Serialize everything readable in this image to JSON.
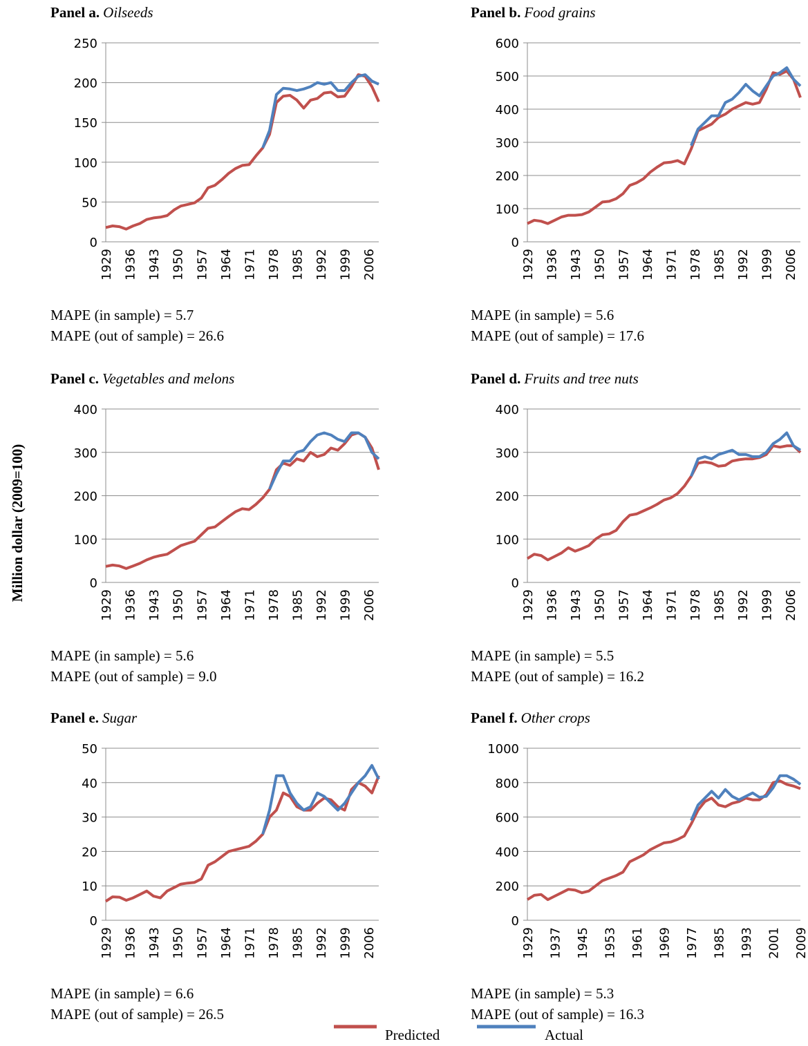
{
  "y_label": "Million dollar (2009=100)",
  "legend": [
    {
      "name": "Predicted",
      "color": "#c0504d"
    },
    {
      "name": "Actual",
      "color": "#4f81bd"
    }
  ],
  "chart_data": [
    {
      "type": "line",
      "title": "Panel a.",
      "subtitle": "Oilseeds",
      "notes": [
        "MAPE (in sample) = 5.7",
        "MAPE (out of sample) = 26.6"
      ],
      "x": [
        1929,
        1931,
        1933,
        1935,
        1937,
        1939,
        1941,
        1943,
        1945,
        1947,
        1949,
        1951,
        1953,
        1955,
        1957,
        1959,
        1961,
        1963,
        1965,
        1967,
        1969,
        1971,
        1973,
        1975,
        1977,
        1979,
        1981,
        1983,
        1985,
        1987,
        1989,
        1991,
        1993,
        1995,
        1997,
        1999,
        2001,
        2003,
        2005,
        2007,
        2009
      ],
      "xlim": [
        1929,
        2009
      ],
      "xticks": [
        1929,
        1936,
        1943,
        1950,
        1957,
        1964,
        1971,
        1978,
        1985,
        1992,
        1999,
        2006
      ],
      "ylim": [
        0,
        250
      ],
      "yticks": [
        0,
        50,
        100,
        150,
        200,
        250
      ],
      "grid": true,
      "series": [
        {
          "color": "#c0504d",
          "values": [
            18,
            20,
            19,
            16,
            20,
            23,
            28,
            30,
            31,
            33,
            40,
            45,
            47,
            49,
            55,
            68,
            71,
            78,
            86,
            92,
            96,
            97,
            108,
            118,
            135,
            175,
            183,
            184,
            178,
            168,
            178,
            180,
            187,
            188,
            182,
            183,
            195,
            210,
            208,
            195,
            176
          ]
        },
        {
          "color": "#4f81bd",
          "values": [
            null,
            null,
            null,
            null,
            null,
            null,
            null,
            null,
            null,
            null,
            null,
            null,
            null,
            null,
            null,
            null,
            null,
            null,
            null,
            null,
            null,
            null,
            null,
            118,
            140,
            185,
            193,
            192,
            190,
            192,
            195,
            200,
            198,
            200,
            190,
            190,
            200,
            208,
            210,
            202,
            198
          ]
        }
      ]
    },
    {
      "type": "line",
      "title": "Panel b.",
      "subtitle": "Food grains",
      "notes": [
        "MAPE (in sample) = 5.6",
        "MAPE (out of sample) = 17.6"
      ],
      "x": [
        1929,
        1931,
        1933,
        1935,
        1937,
        1939,
        1941,
        1943,
        1945,
        1947,
        1949,
        1951,
        1953,
        1955,
        1957,
        1959,
        1961,
        1963,
        1965,
        1967,
        1969,
        1971,
        1973,
        1975,
        1977,
        1979,
        1981,
        1983,
        1985,
        1987,
        1989,
        1991,
        1993,
        1995,
        1997,
        1999,
        2001,
        2003,
        2005,
        2007,
        2009
      ],
      "xlim": [
        1929,
        2009
      ],
      "xticks": [
        1929,
        1936,
        1943,
        1950,
        1957,
        1964,
        1971,
        1978,
        1985,
        1992,
        1999,
        2006
      ],
      "ylim": [
        0,
        600
      ],
      "yticks": [
        0,
        100,
        200,
        300,
        400,
        500,
        600
      ],
      "grid": true,
      "series": [
        {
          "color": "#c0504d",
          "values": [
            55,
            65,
            62,
            55,
            65,
            75,
            80,
            80,
            82,
            90,
            105,
            120,
            122,
            130,
            145,
            170,
            178,
            190,
            210,
            225,
            238,
            240,
            245,
            235,
            280,
            335,
            345,
            355,
            375,
            385,
            400,
            410,
            420,
            415,
            420,
            460,
            510,
            505,
            515,
            490,
            435
          ]
        },
        {
          "color": "#4f81bd",
          "values": [
            null,
            null,
            null,
            null,
            null,
            null,
            null,
            null,
            null,
            null,
            null,
            null,
            null,
            null,
            null,
            null,
            null,
            null,
            null,
            null,
            null,
            null,
            null,
            null,
            290,
            340,
            360,
            380,
            380,
            420,
            430,
            450,
            475,
            455,
            440,
            470,
            500,
            510,
            525,
            490,
            470
          ]
        }
      ]
    },
    {
      "type": "line",
      "title": "Panel c.",
      "subtitle": "Vegetables and melons",
      "notes": [
        "MAPE (in sample) = 5.6",
        "MAPE (out of sample) = 9.0"
      ],
      "x": [
        1929,
        1931,
        1933,
        1935,
        1937,
        1939,
        1941,
        1943,
        1945,
        1947,
        1949,
        1951,
        1953,
        1955,
        1957,
        1959,
        1961,
        1963,
        1965,
        1967,
        1969,
        1971,
        1973,
        1975,
        1977,
        1979,
        1981,
        1983,
        1985,
        1987,
        1989,
        1991,
        1993,
        1995,
        1997,
        1999,
        2001,
        2003,
        2005,
        2007,
        2009
      ],
      "xlim": [
        1929,
        2009
      ],
      "xticks": [
        1929,
        1936,
        1943,
        1950,
        1957,
        1964,
        1971,
        1978,
        1985,
        1992,
        1999,
        2006
      ],
      "ylim": [
        0,
        400
      ],
      "yticks": [
        0,
        100,
        200,
        300,
        400
      ],
      "grid": true,
      "series": [
        {
          "color": "#c0504d",
          "values": [
            37,
            40,
            38,
            32,
            38,
            44,
            52,
            58,
            62,
            65,
            75,
            85,
            90,
            95,
            110,
            125,
            128,
            140,
            152,
            163,
            170,
            168,
            180,
            195,
            215,
            260,
            275,
            270,
            285,
            280,
            300,
            290,
            295,
            310,
            305,
            320,
            340,
            345,
            335,
            310,
            260
          ]
        },
        {
          "color": "#4f81bd",
          "values": [
            null,
            null,
            null,
            null,
            null,
            null,
            null,
            null,
            null,
            null,
            null,
            null,
            null,
            null,
            null,
            null,
            null,
            null,
            null,
            null,
            null,
            null,
            null,
            null,
            215,
            250,
            280,
            280,
            300,
            305,
            325,
            340,
            345,
            340,
            330,
            325,
            345,
            345,
            335,
            300,
            285
          ]
        }
      ]
    },
    {
      "type": "line",
      "title": "Panel d.",
      "subtitle": "Fruits and tree nuts",
      "notes": [
        "MAPE (in sample) = 5.5",
        "MAPE (out of sample) = 16.2"
      ],
      "x": [
        1929,
        1931,
        1933,
        1935,
        1937,
        1939,
        1941,
        1943,
        1945,
        1947,
        1949,
        1951,
        1953,
        1955,
        1957,
        1959,
        1961,
        1963,
        1965,
        1967,
        1969,
        1971,
        1973,
        1975,
        1977,
        1979,
        1981,
        1983,
        1985,
        1987,
        1989,
        1991,
        1993,
        1995,
        1997,
        1999,
        2001,
        2003,
        2005,
        2007,
        2009
      ],
      "xlim": [
        1929,
        2009
      ],
      "xticks": [
        1929,
        1936,
        1943,
        1950,
        1957,
        1964,
        1971,
        1978,
        1985,
        1992,
        1999,
        2006
      ],
      "ylim": [
        0,
        400
      ],
      "yticks": [
        0,
        100,
        200,
        300,
        400
      ],
      "grid": true,
      "series": [
        {
          "color": "#c0504d",
          "values": [
            55,
            65,
            62,
            52,
            60,
            68,
            80,
            72,
            78,
            85,
            100,
            110,
            112,
            120,
            140,
            155,
            158,
            165,
            172,
            180,
            190,
            195,
            205,
            222,
            245,
            275,
            278,
            275,
            268,
            270,
            280,
            283,
            285,
            285,
            288,
            295,
            315,
            312,
            315,
            315,
            300
          ]
        },
        {
          "color": "#4f81bd",
          "values": [
            null,
            null,
            null,
            null,
            null,
            null,
            null,
            null,
            null,
            null,
            null,
            null,
            null,
            null,
            null,
            null,
            null,
            null,
            null,
            null,
            null,
            null,
            null,
            null,
            245,
            285,
            290,
            285,
            295,
            300,
            305,
            295,
            295,
            290,
            290,
            300,
            320,
            330,
            345,
            315,
            305
          ]
        }
      ]
    },
    {
      "type": "line",
      "title": "Panel e.",
      "subtitle": "Sugar",
      "notes": [
        "MAPE (in sample) = 6.6",
        "MAPE (out of sample) = 26.5"
      ],
      "x": [
        1929,
        1931,
        1933,
        1935,
        1937,
        1939,
        1941,
        1943,
        1945,
        1947,
        1949,
        1951,
        1953,
        1955,
        1957,
        1959,
        1961,
        1963,
        1965,
        1967,
        1969,
        1971,
        1973,
        1975,
        1977,
        1979,
        1981,
        1983,
        1985,
        1987,
        1989,
        1991,
        1993,
        1995,
        1997,
        1999,
        2001,
        2003,
        2005,
        2007,
        2009
      ],
      "xlim": [
        1929,
        2009
      ],
      "xticks": [
        1929,
        1936,
        1943,
        1950,
        1957,
        1964,
        1971,
        1978,
        1985,
        1992,
        1999,
        2006
      ],
      "ylim": [
        0,
        50
      ],
      "yticks": [
        0,
        10,
        20,
        30,
        40,
        50
      ],
      "grid": true,
      "series": [
        {
          "color": "#c0504d",
          "values": [
            5.5,
            6.8,
            6.7,
            5.8,
            6.5,
            7.5,
            8.5,
            7,
            6.5,
            8.5,
            9.5,
            10.5,
            10.8,
            11,
            12,
            16,
            17,
            18.5,
            20,
            20.5,
            21,
            21.5,
            23,
            25,
            30,
            32,
            37,
            36,
            33,
            32,
            32,
            34,
            35.5,
            35,
            33,
            32,
            38,
            40,
            39,
            37,
            42
          ]
        },
        {
          "color": "#4f81bd",
          "values": [
            null,
            null,
            null,
            null,
            null,
            null,
            null,
            null,
            null,
            null,
            null,
            null,
            null,
            null,
            null,
            null,
            null,
            null,
            null,
            null,
            null,
            null,
            null,
            25,
            32,
            42,
            42,
            37,
            34,
            32,
            33,
            37,
            36,
            34,
            32,
            34,
            37,
            40,
            42,
            45,
            41
          ]
        }
      ]
    },
    {
      "type": "line",
      "title": "Panel f.",
      "subtitle": "Other crops",
      "notes": [
        "MAPE (in sample) = 5.3",
        "MAPE (out of sample) = 16.3"
      ],
      "x": [
        1929,
        1931,
        1933,
        1935,
        1937,
        1939,
        1941,
        1943,
        1945,
        1947,
        1949,
        1951,
        1953,
        1955,
        1957,
        1959,
        1961,
        1963,
        1965,
        1967,
        1969,
        1971,
        1973,
        1975,
        1977,
        1979,
        1981,
        1983,
        1985,
        1987,
        1989,
        1991,
        1993,
        1995,
        1997,
        1999,
        2001,
        2003,
        2005,
        2007,
        2009
      ],
      "xlim": [
        1929,
        2009
      ],
      "xticks": [
        1929,
        1937,
        1945,
        1953,
        1961,
        1969,
        1977,
        1985,
        1993,
        2001,
        2009
      ],
      "ylim": [
        0,
        1000
      ],
      "yticks": [
        0,
        200,
        400,
        600,
        800,
        1000
      ],
      "grid": true,
      "series": [
        {
          "color": "#c0504d",
          "values": [
            120,
            145,
            150,
            120,
            140,
            160,
            180,
            175,
            160,
            170,
            200,
            230,
            245,
            260,
            280,
            340,
            360,
            380,
            410,
            430,
            450,
            455,
            470,
            490,
            560,
            640,
            690,
            710,
            670,
            660,
            680,
            690,
            710,
            700,
            700,
            730,
            800,
            810,
            790,
            780,
            765
          ]
        },
        {
          "color": "#4f81bd",
          "values": [
            null,
            null,
            null,
            null,
            null,
            null,
            null,
            null,
            null,
            null,
            null,
            null,
            null,
            null,
            null,
            null,
            null,
            null,
            null,
            null,
            null,
            null,
            null,
            null,
            580,
            670,
            710,
            750,
            710,
            760,
            720,
            700,
            720,
            740,
            715,
            720,
            770,
            840,
            840,
            820,
            790
          ]
        }
      ]
    }
  ]
}
